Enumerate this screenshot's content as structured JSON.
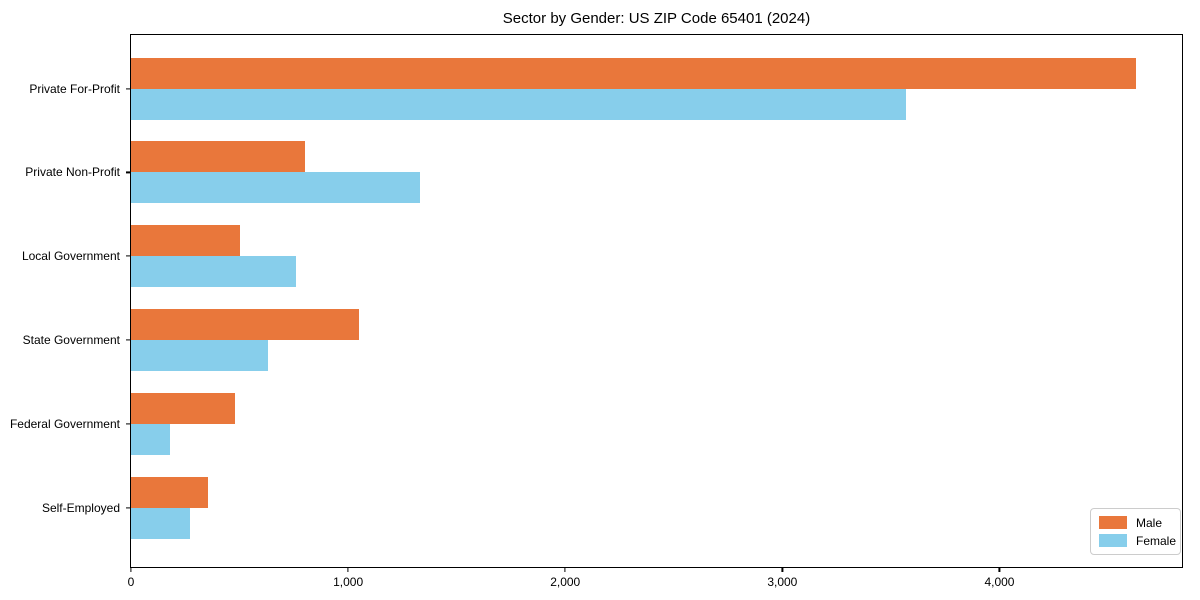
{
  "chart_data": {
    "type": "bar",
    "orientation": "horizontal",
    "title": "Sector by Gender: US ZIP Code 65401 (2024)",
    "categories": [
      "Private For-Profit",
      "Private Non-Profit",
      "Local Government",
      "State Government",
      "Federal Government",
      "Self-Employed"
    ],
    "series": [
      {
        "name": "Male",
        "color": "#E9773B",
        "values": [
          4630,
          800,
          500,
          1050,
          480,
          355
        ]
      },
      {
        "name": "Female",
        "color": "#87CEEB",
        "values": [
          3570,
          1330,
          760,
          630,
          180,
          270
        ]
      }
    ],
    "xlabel": "",
    "ylabel": "",
    "xlim": [
      0,
      4850
    ],
    "x_ticks": [
      0,
      1000,
      2000,
      3000,
      4000
    ],
    "x_tick_labels": [
      "0",
      "1,000",
      "2,000",
      "3,000",
      "4,000"
    ],
    "legend_position": "lower right",
    "grid": false
  }
}
